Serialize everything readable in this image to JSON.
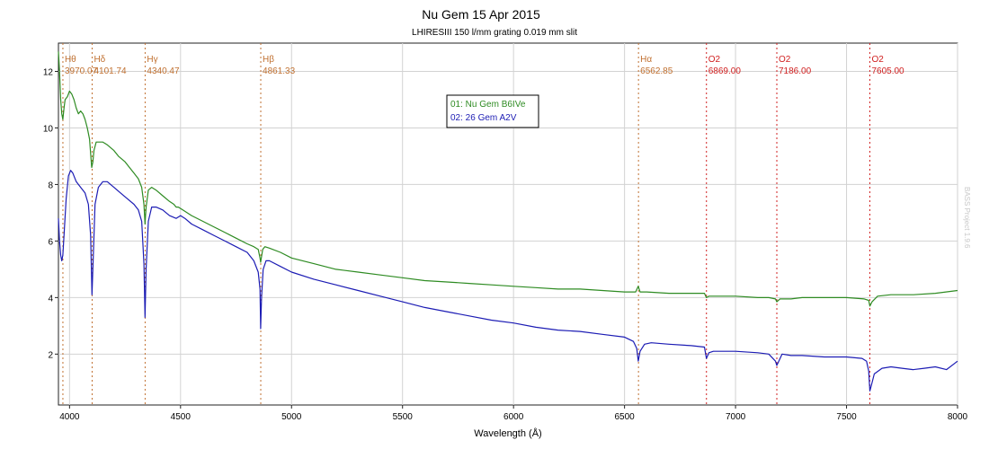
{
  "chart_data": {
    "type": "line",
    "title": "Nu Gem  15 Apr 2015",
    "subtitle": "LHIRESIII  150 l/mm grating   0.019 mm slit",
    "xlabel": "Wavelength (Å)",
    "ylabel": "",
    "xlim": [
      3950,
      8000
    ],
    "ylim": [
      0.2,
      13
    ],
    "x_ticks": [
      4000,
      4500,
      5000,
      5500,
      6000,
      6500,
      7000,
      7500,
      8000
    ],
    "y_ticks": [
      2,
      4,
      6,
      8,
      10,
      12
    ],
    "grid": true,
    "legend": {
      "position": "top-center",
      "entries": [
        {
          "label": "01: Nu Gem  B6IVe",
          "color": "#2e8b22"
        },
        {
          "label": "02: 26 Gem  A2V",
          "color": "#1c1cb4"
        }
      ]
    },
    "watermark": "BASS Project 1.9.6",
    "line_markers": [
      {
        "name": "Hθ",
        "wavelength": 3970.07,
        "label": "3970.07",
        "color": "#c07030"
      },
      {
        "name": "Hδ",
        "wavelength": 4101.74,
        "label": "4101.74",
        "color": "#c07030"
      },
      {
        "name": "Hγ",
        "wavelength": 4340.47,
        "label": "4340.47",
        "color": "#c07030"
      },
      {
        "name": "Hβ",
        "wavelength": 4861.33,
        "label": "4861.33",
        "color": "#c07030"
      },
      {
        "name": "Hα",
        "wavelength": 6562.85,
        "label": "6562.85",
        "color": "#c07030"
      },
      {
        "name": "O2",
        "wavelength": 6869.0,
        "label": "6869.00",
        "color": "#d02020"
      },
      {
        "name": "O2",
        "wavelength": 7186.0,
        "label": "7186.00",
        "color": "#d02020"
      },
      {
        "name": "O2",
        "wavelength": 7605.0,
        "label": "7605.00",
        "color": "#d02020"
      }
    ],
    "series": [
      {
        "name": "01: Nu Gem  B6IVe",
        "color": "#2e8b22",
        "x": [
          3950,
          3955,
          3960,
          3965,
          3970,
          3975,
          3980,
          3990,
          4000,
          4010,
          4020,
          4030,
          4040,
          4050,
          4060,
          4070,
          4080,
          4090,
          4095,
          4100,
          4105,
          4110,
          4120,
          4130,
          4150,
          4170,
          4200,
          4220,
          4250,
          4270,
          4290,
          4310,
          4325,
          4335,
          4340,
          4345,
          4355,
          4370,
          4390,
          4420,
          4450,
          4470,
          4480,
          4490,
          4510,
          4550,
          4600,
          4650,
          4700,
          4750,
          4800,
          4830,
          4850,
          4858,
          4861,
          4865,
          4870,
          4880,
          4900,
          4950,
          5000,
          5100,
          5200,
          5300,
          5400,
          5500,
          5600,
          5700,
          5800,
          5900,
          6000,
          6100,
          6200,
          6300,
          6400,
          6500,
          6550,
          6562,
          6570,
          6600,
          6700,
          6800,
          6860,
          6869,
          6880,
          6900,
          7000,
          7100,
          7150,
          7180,
          7186,
          7200,
          7250,
          7300,
          7400,
          7500,
          7580,
          7600,
          7605,
          7615,
          7640,
          7700,
          7800,
          7900,
          8000
        ],
        "y": [
          12.7,
          12.0,
          11.0,
          10.5,
          10.3,
          10.7,
          11.0,
          11.1,
          11.3,
          11.2,
          11.0,
          10.7,
          10.5,
          10.6,
          10.5,
          10.3,
          10.0,
          9.6,
          9.1,
          8.6,
          8.8,
          9.2,
          9.5,
          9.5,
          9.5,
          9.4,
          9.2,
          9.0,
          8.8,
          8.6,
          8.4,
          8.2,
          7.9,
          7.3,
          6.6,
          7.2,
          7.8,
          7.9,
          7.8,
          7.6,
          7.4,
          7.3,
          7.2,
          7.2,
          7.1,
          6.9,
          6.7,
          6.5,
          6.3,
          6.1,
          5.9,
          5.8,
          5.7,
          5.4,
          5.25,
          5.45,
          5.7,
          5.8,
          5.75,
          5.6,
          5.4,
          5.2,
          5.0,
          4.9,
          4.8,
          4.7,
          4.6,
          4.55,
          4.5,
          4.45,
          4.4,
          4.35,
          4.3,
          4.3,
          4.25,
          4.2,
          4.2,
          4.4,
          4.2,
          4.2,
          4.15,
          4.15,
          4.15,
          4.0,
          4.05,
          4.05,
          4.05,
          4.0,
          4.0,
          3.95,
          3.85,
          3.95,
          3.95,
          4.0,
          4.0,
          4.0,
          3.95,
          3.9,
          3.7,
          3.85,
          4.05,
          4.1,
          4.1,
          4.15,
          4.25
        ]
      },
      {
        "name": "02: 26 Gem  A2V",
        "color": "#1c1cb4",
        "x": [
          3950,
          3955,
          3960,
          3965,
          3970,
          3975,
          3985,
          3995,
          4005,
          4015,
          4030,
          4050,
          4070,
          4085,
          4095,
          4101,
          4107,
          4115,
          4130,
          4150,
          4170,
          4200,
          4230,
          4260,
          4290,
          4310,
          4325,
          4335,
          4340,
          4345,
          4355,
          4370,
          4390,
          4420,
          4450,
          4480,
          4500,
          4520,
          4550,
          4600,
          4650,
          4700,
          4750,
          4800,
          4830,
          4850,
          4858,
          4861,
          4865,
          4872,
          4885,
          4900,
          4950,
          5000,
          5100,
          5200,
          5300,
          5400,
          5500,
          5600,
          5700,
          5800,
          5900,
          6000,
          6100,
          6200,
          6300,
          6400,
          6500,
          6540,
          6555,
          6562,
          6570,
          6590,
          6620,
          6700,
          6800,
          6860,
          6869,
          6880,
          6900,
          7000,
          7100,
          7150,
          7180,
          7186,
          7195,
          7210,
          7250,
          7300,
          7400,
          7500,
          7570,
          7590,
          7600,
          7605,
          7612,
          7625,
          7660,
          7700,
          7750,
          7800,
          7850,
          7900,
          7950,
          8000
        ],
        "y": [
          6.8,
          6.0,
          5.5,
          5.3,
          5.5,
          6.2,
          7.5,
          8.3,
          8.5,
          8.4,
          8.1,
          7.9,
          7.7,
          7.3,
          6.2,
          4.1,
          5.5,
          7.3,
          7.9,
          8.1,
          8.1,
          7.9,
          7.7,
          7.5,
          7.3,
          7.1,
          6.7,
          5.2,
          3.3,
          5.0,
          6.7,
          7.2,
          7.2,
          7.1,
          6.9,
          6.8,
          6.9,
          6.8,
          6.6,
          6.4,
          6.2,
          6.0,
          5.8,
          5.6,
          5.3,
          4.9,
          4.3,
          2.9,
          4.0,
          5.0,
          5.3,
          5.3,
          5.1,
          4.9,
          4.65,
          4.45,
          4.25,
          4.05,
          3.85,
          3.65,
          3.5,
          3.35,
          3.2,
          3.1,
          2.95,
          2.85,
          2.8,
          2.7,
          2.6,
          2.45,
          2.2,
          1.75,
          2.1,
          2.35,
          2.4,
          2.35,
          2.3,
          2.25,
          1.85,
          2.05,
          2.1,
          2.1,
          2.05,
          2.0,
          1.75,
          1.6,
          1.75,
          2.0,
          1.95,
          1.95,
          1.9,
          1.9,
          1.85,
          1.75,
          1.4,
          0.7,
          0.9,
          1.3,
          1.5,
          1.55,
          1.5,
          1.45,
          1.5,
          1.55,
          1.45,
          1.75
        ]
      }
    ]
  }
}
